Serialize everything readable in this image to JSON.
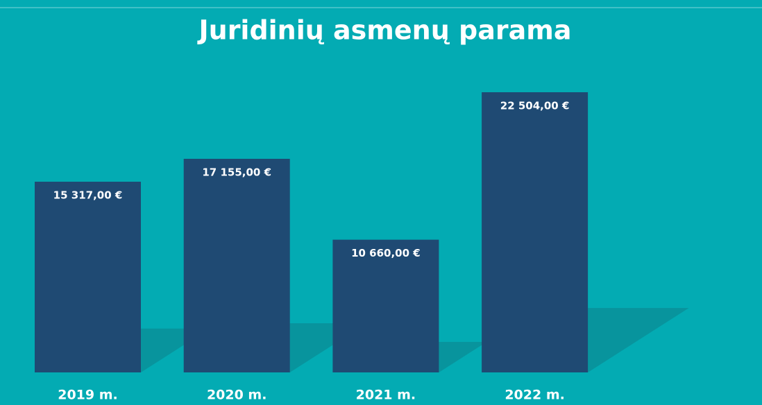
{
  "chart_data": {
    "type": "bar",
    "title": "Juridinių asmenų parama",
    "categories": [
      "2019 m.",
      "2020 m.",
      "2021 m.",
      "2022 m."
    ],
    "values": [
      15317,
      17155,
      10660,
      22504
    ],
    "value_labels": [
      "15 317,00 €",
      "17 155,00 €",
      "10 660,00 €",
      "22 504,00 €"
    ],
    "color": "#1f4a73"
  }
}
